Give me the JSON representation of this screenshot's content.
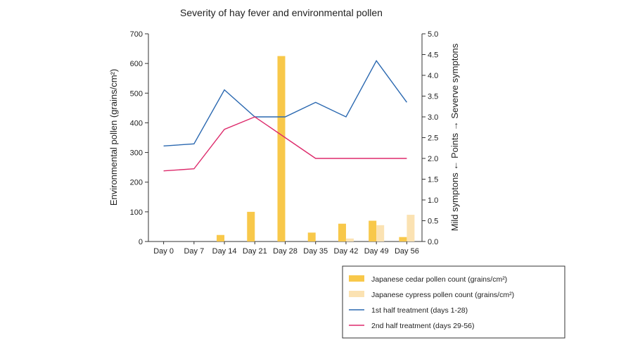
{
  "chart_data": {
    "type": "bar",
    "title": "Severity of hay fever and environmental pollen",
    "ylabel_left": "Environmental pollen (grains/cm²)",
    "ylabel_right": "Mild symptons ← Points → Severve symptons",
    "categories": [
      "Day 0",
      "Day 7",
      "Day 14",
      "Day 21",
      "Day 28",
      "Day 35",
      "Day 42",
      "Day 49",
      "Day 56"
    ],
    "ylim_left": [
      0,
      700
    ],
    "ylim_right": [
      0,
      5
    ],
    "yticks_left": [
      "0",
      "100",
      "200",
      "300",
      "400",
      "500",
      "600",
      "700"
    ],
    "yticks_right": [
      "0.0",
      "0.5",
      "1.0",
      "1.5",
      "2.0",
      "2.5",
      "3.0",
      "3.5",
      "4.0",
      "4.5",
      "5.0"
    ],
    "grid": false,
    "legend_placement": "bottom-right",
    "series": [
      {
        "name": "Japanese cedar pollen count (grains/cm²)",
        "kind": "bar",
        "axis": "left",
        "color": "#f8c84a",
        "values": [
          0,
          0,
          22,
          100,
          625,
          30,
          60,
          70,
          15
        ]
      },
      {
        "name": "Japanese cypress pollen count (grains/cm²)",
        "kind": "bar",
        "axis": "left",
        "color": "#fbe2b2",
        "values": [
          0,
          0,
          0,
          0,
          0,
          0,
          10,
          55,
          90
        ]
      },
      {
        "name": "1st half treatment (days 1-28)",
        "kind": "line",
        "axis": "right",
        "color": "#2a68b0",
        "values": [
          2.3,
          2.35,
          3.65,
          3.0,
          3.0,
          3.35,
          3.0,
          4.35,
          3.35
        ]
      },
      {
        "name": "2nd half treatment (days 29-56)",
        "kind": "line",
        "axis": "right",
        "color": "#dd2a6b",
        "values": [
          1.7,
          1.75,
          2.7,
          3.0,
          2.5,
          2.0,
          2.0,
          2.0,
          2.0
        ]
      }
    ]
  }
}
